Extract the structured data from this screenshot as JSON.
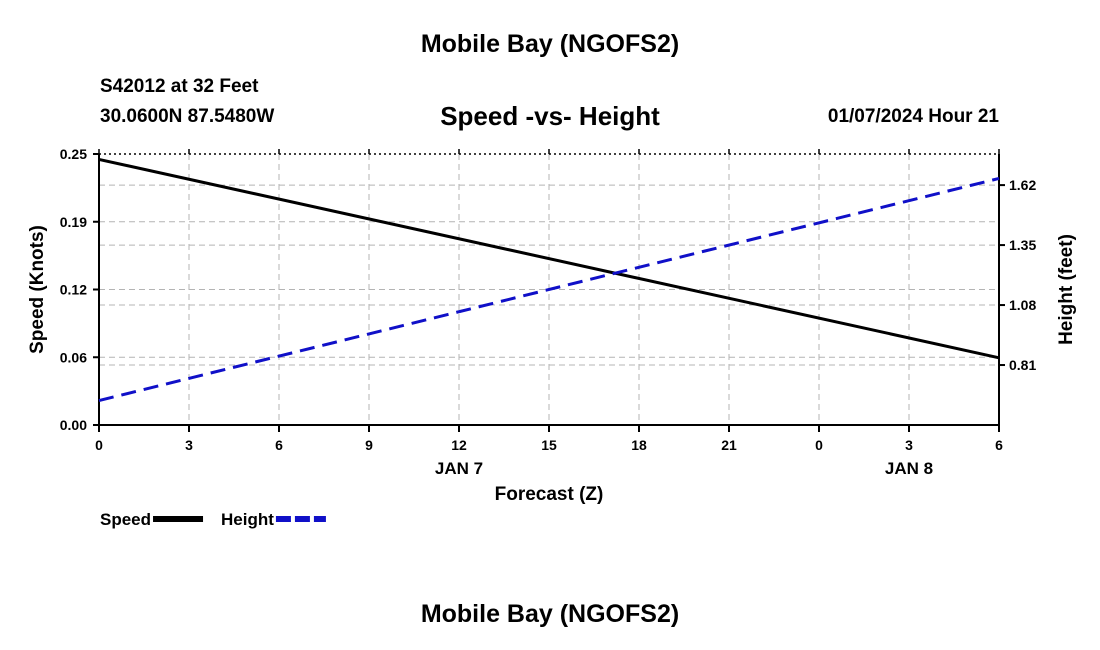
{
  "header": {
    "main_title": "Mobile Bay (NGOFS2)",
    "station": "S42012 at 32 Feet",
    "coords": "30.0600N  87.5480W",
    "chart_title": "Speed -vs- Height",
    "datetime": "01/07/2024 Hour 21"
  },
  "footer": {
    "title": "Mobile Bay (NGOFS2)"
  },
  "chart_data": {
    "type": "line",
    "title": "Speed -vs- Height",
    "xlabel": "Forecast (Z)",
    "x_ticks": [
      "0",
      "3",
      "6",
      "9",
      "12",
      "15",
      "18",
      "21",
      "0",
      "3",
      "6"
    ],
    "x_date_labels": [
      {
        "at_tick": 4,
        "text": "JAN 7"
      },
      {
        "at_tick": 9,
        "text": "JAN 8"
      }
    ],
    "x_hours": [
      0,
      30
    ],
    "y_left": {
      "label": "Speed (Knots)",
      "range": [
        0.0,
        0.25
      ],
      "ticks": [
        "0.00",
        "0.06",
        "0.12",
        "0.19",
        "0.25"
      ]
    },
    "y_right": {
      "label": "Height (feet)",
      "range": [
        0.54,
        1.76
      ],
      "ticks": [
        "0.81",
        "1.08",
        "1.35",
        "1.62"
      ]
    },
    "series": [
      {
        "name": "Speed",
        "axis": "left",
        "color": "#000000",
        "style": "solid",
        "x": [
          0,
          30
        ],
        "values": [
          0.245,
          0.062
        ]
      },
      {
        "name": "Height",
        "axis": "right",
        "color": "#1010c8",
        "style": "dashed",
        "x": [
          0,
          30
        ],
        "values": [
          0.65,
          1.65
        ]
      }
    ],
    "grid": true,
    "legend_placement": "bottom-left"
  }
}
